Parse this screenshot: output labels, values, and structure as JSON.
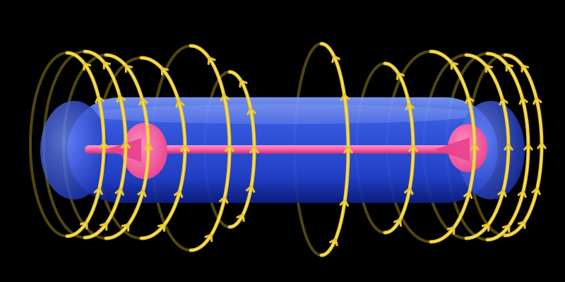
{
  "scene": {
    "subject": "toroidal-field-visualization",
    "colors": {
      "background": "#000000",
      "torus_body": "#2f55e8",
      "torus_highlight": "#7f9cff",
      "torus_shadow": "#0d1e86",
      "axis_current": "#ff5fa8",
      "field_loops": "#e8c830",
      "field_loops_dark": "#8a6f10",
      "field_loops_light": "#fff08a"
    },
    "field_loop_count": 12,
    "arrow_icon": "arrowhead-icon"
  }
}
